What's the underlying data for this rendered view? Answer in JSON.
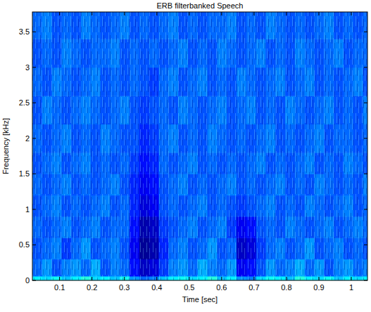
{
  "chart_data": {
    "type": "heatmap",
    "title": "ERB filterbanked Speech",
    "x_label": "Time [sec]",
    "y_label": "Frequency [kHz]",
    "xlim": [
      0.016,
      1.05
    ],
    "ylim": [
      0,
      3.78
    ],
    "xticks": [
      0.1,
      0.2,
      0.3,
      0.4,
      0.5,
      0.6,
      0.7,
      0.8,
      0.9,
      1
    ],
    "yticks": [
      0,
      0.5,
      1,
      1.5,
      2,
      2.5,
      3,
      3.5
    ],
    "zlim": [
      0,
      2.2
    ],
    "x_edges": [
      0.016,
      0.046,
      0.076,
      0.106,
      0.136,
      0.166,
      0.196,
      0.226,
      0.256,
      0.286,
      0.316,
      0.346,
      0.376,
      0.406,
      0.436,
      0.466,
      0.496,
      0.526,
      0.556,
      0.586,
      0.616,
      0.646,
      0.676,
      0.706,
      0.736,
      0.766,
      0.796,
      0.826,
      0.856,
      0.886,
      0.916,
      0.946,
      0.976,
      1.006,
      1.036,
      1.066
    ],
    "y_edges": [
      0,
      0.06,
      0.3,
      0.6,
      0.9,
      1.2,
      1.5,
      1.8,
      2.2,
      2.6,
      3.0,
      3.4,
      3.8
    ],
    "cells": [
      [
        0.8,
        0.75,
        0.85,
        0.7,
        0.8,
        0.9,
        0.75,
        0.8,
        0.7,
        0.85,
        0.6,
        0.5,
        0.55,
        0.7,
        0.8,
        0.85,
        0.75,
        0.8,
        0.9,
        0.7,
        0.8,
        0.6,
        0.55,
        0.75,
        0.85,
        0.8,
        0.7,
        0.9,
        0.8,
        0.75,
        0.85,
        0.7,
        0.8,
        0.75,
        0.8
      ],
      [
        0.5,
        0.6,
        0.45,
        0.55,
        0.6,
        0.5,
        0.65,
        0.45,
        0.55,
        0.5,
        0.3,
        0.15,
        0.2,
        0.4,
        0.55,
        0.6,
        0.5,
        0.65,
        0.55,
        0.5,
        0.6,
        0.25,
        0.3,
        0.45,
        0.6,
        0.5,
        0.55,
        0.65,
        0.5,
        0.6,
        0.45,
        0.55,
        0.6,
        0.5,
        0.55
      ],
      [
        0.45,
        0.5,
        0.55,
        0.4,
        0.5,
        0.6,
        0.45,
        0.5,
        0.55,
        0.45,
        0.25,
        0.05,
        0.1,
        0.35,
        0.5,
        0.55,
        0.45,
        0.5,
        0.6,
        0.45,
        0.5,
        0.15,
        0.2,
        0.4,
        0.5,
        0.55,
        0.45,
        0.5,
        0.6,
        0.45,
        0.5,
        0.55,
        0.45,
        0.5,
        0.45
      ],
      [
        0.5,
        0.45,
        0.5,
        0.55,
        0.45,
        0.5,
        0.55,
        0.45,
        0.5,
        0.5,
        0.3,
        0.1,
        0.15,
        0.4,
        0.45,
        0.5,
        0.55,
        0.45,
        0.5,
        0.55,
        0.4,
        0.25,
        0.3,
        0.45,
        0.5,
        0.45,
        0.55,
        0.5,
        0.45,
        0.5,
        0.55,
        0.45,
        0.5,
        0.55,
        0.5
      ],
      [
        0.45,
        0.5,
        0.55,
        0.45,
        0.5,
        0.45,
        0.5,
        0.55,
        0.45,
        0.5,
        0.35,
        0.2,
        0.25,
        0.45,
        0.5,
        0.45,
        0.5,
        0.55,
        0.45,
        0.5,
        0.45,
        0.4,
        0.45,
        0.5,
        0.55,
        0.45,
        0.5,
        0.45,
        0.55,
        0.5,
        0.45,
        0.5,
        0.55,
        0.45,
        0.5
      ],
      [
        0.5,
        0.45,
        0.5,
        0.55,
        0.45,
        0.5,
        0.45,
        0.5,
        0.55,
        0.45,
        0.35,
        0.25,
        0.3,
        0.45,
        0.5,
        0.55,
        0.45,
        0.5,
        0.45,
        0.5,
        0.55,
        0.45,
        0.5,
        0.45,
        0.5,
        0.55,
        0.45,
        0.5,
        0.45,
        0.55,
        0.5,
        0.45,
        0.5,
        0.45,
        0.55
      ],
      [
        0.45,
        0.5,
        0.55,
        0.45,
        0.5,
        0.55,
        0.45,
        0.5,
        0.45,
        0.5,
        0.4,
        0.3,
        0.35,
        0.5,
        0.45,
        0.5,
        0.55,
        0.45,
        0.5,
        0.45,
        0.5,
        0.45,
        0.5,
        0.55,
        0.45,
        0.5,
        0.45,
        0.5,
        0.55,
        0.45,
        0.5,
        0.45,
        0.55,
        0.5,
        0.45
      ],
      [
        0.5,
        0.45,
        0.5,
        0.55,
        0.45,
        0.5,
        0.45,
        0.55,
        0.5,
        0.45,
        0.45,
        0.35,
        0.4,
        0.5,
        0.55,
        0.45,
        0.5,
        0.45,
        0.55,
        0.5,
        0.45,
        0.5,
        0.45,
        0.5,
        0.55,
        0.45,
        0.5,
        0.45,
        0.5,
        0.55,
        0.45,
        0.5,
        0.5,
        0.45,
        0.5
      ],
      [
        0.45,
        0.55,
        0.5,
        0.45,
        0.5,
        0.55,
        0.5,
        0.45,
        0.5,
        0.55,
        0.45,
        0.4,
        0.45,
        0.5,
        0.45,
        0.55,
        0.5,
        0.45,
        0.5,
        0.55,
        0.45,
        0.5,
        0.55,
        0.45,
        0.5,
        0.45,
        0.55,
        0.5,
        0.45,
        0.5,
        0.55,
        0.45,
        0.5,
        0.45,
        0.55
      ],
      [
        0.5,
        0.45,
        0.55,
        0.5,
        0.45,
        0.5,
        0.55,
        0.45,
        0.5,
        0.45,
        0.5,
        0.45,
        0.4,
        0.5,
        0.55,
        0.45,
        0.5,
        0.55,
        0.45,
        0.5,
        0.45,
        0.55,
        0.5,
        0.45,
        0.5,
        0.55,
        0.45,
        0.5,
        0.55,
        0.45,
        0.5,
        0.45,
        0.5,
        0.55,
        0.45
      ],
      [
        0.45,
        0.5,
        0.45,
        0.55,
        0.5,
        0.45,
        0.5,
        0.5,
        0.55,
        0.45,
        0.5,
        0.45,
        0.5,
        0.45,
        0.5,
        0.55,
        0.45,
        0.5,
        0.45,
        0.55,
        0.5,
        0.45,
        0.5,
        0.55,
        0.45,
        0.5,
        0.45,
        0.55,
        0.5,
        0.45,
        0.5,
        0.55,
        0.45,
        0.5,
        0.5
      ],
      [
        0.5,
        0.55,
        0.45,
        0.5,
        0.45,
        0.55,
        0.5,
        0.45,
        0.5,
        0.55,
        0.45,
        0.5,
        0.45,
        0.5,
        0.55,
        0.45,
        0.5,
        0.45,
        0.5,
        0.5,
        0.55,
        0.45,
        0.5,
        0.45,
        0.55,
        0.5,
        0.45,
        0.5,
        0.45,
        0.5,
        0.55,
        0.45,
        0.5,
        0.45,
        0.5
      ]
    ]
  }
}
